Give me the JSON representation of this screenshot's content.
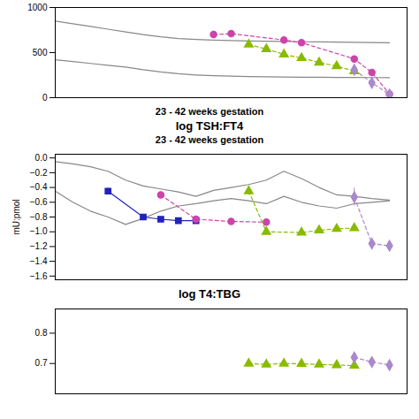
{
  "chart_data": [
    {
      "type": "line",
      "xlabel": "23 - 42 weeks gestation",
      "xlim": [
        23,
        43
      ],
      "ylim": [
        0,
        1000
      ],
      "yticks": [
        0,
        500,
        1000
      ],
      "tick_labels": "y",
      "grid": false,
      "series": [
        {
          "color": "#888888",
          "marker": "none",
          "line_style": "solid",
          "x": [
            23,
            24,
            25,
            26,
            27,
            28,
            29,
            30,
            31,
            32,
            33,
            34,
            35,
            36,
            37,
            38,
            39,
            40,
            41,
            42
          ],
          "values": [
            420,
            400,
            380,
            360,
            340,
            310,
            285,
            265,
            252,
            243,
            238,
            234,
            231,
            229,
            227,
            226,
            225,
            224,
            223,
            222
          ]
        },
        {
          "color": "#888888",
          "marker": "none",
          "line_style": "solid",
          "x": [
            23,
            24,
            25,
            26,
            27,
            28,
            29,
            30,
            31,
            32,
            33,
            34,
            35,
            36,
            37,
            38,
            39,
            40,
            41,
            42
          ],
          "values": [
            850,
            820,
            790,
            760,
            730,
            700,
            675,
            655,
            645,
            638,
            633,
            629,
            626,
            623,
            620,
            618,
            616,
            614,
            612,
            610
          ]
        },
        {
          "color": "#cc44aa",
          "marker": "circle",
          "line_style": "dashed",
          "x": [
            32,
            33,
            36,
            37,
            40,
            41,
            42
          ],
          "values": [
            700,
            710,
            640,
            610,
            430,
            280,
            40
          ],
          "error": [
            25,
            25,
            25,
            25,
            25,
            25,
            15
          ]
        },
        {
          "color": "#88bb00",
          "marker": "triangle",
          "line_style": "dashed",
          "x": [
            34,
            35,
            36,
            37,
            38,
            39,
            40
          ],
          "values": [
            590,
            540,
            480,
            440,
            390,
            350,
            295
          ],
          "error": [
            20,
            20,
            20,
            20,
            20,
            20,
            20
          ]
        },
        {
          "color": "#aa88cc",
          "marker": "diamond",
          "line_style": "dashed",
          "x": [
            40,
            41,
            42
          ],
          "values": [
            310,
            165,
            35
          ],
          "error": [
            25,
            20,
            12
          ]
        }
      ]
    },
    {
      "type": "line",
      "title": "log TSH:FT4",
      "subtitle": "23 - 42 weeks gestation",
      "ylabel": "mU:pmol",
      "xlim": [
        23,
        43
      ],
      "ylim": [
        -1.65,
        0.05
      ],
      "yticks": [
        {
          "value": 0,
          "label": "0.0"
        },
        -0.2,
        -0.4,
        -0.6,
        -0.8,
        {
          "value": -1.0,
          "label": "−1.0"
        },
        -1.2,
        -1.4,
        -1.6
      ],
      "tick_labels": "y",
      "grid": false,
      "series": [
        {
          "color": "#888888",
          "marker": "none",
          "line_style": "solid",
          "x": [
            23,
            24,
            25,
            26,
            27,
            28,
            29,
            30,
            31,
            32,
            33,
            34,
            35,
            36,
            37,
            38,
            39,
            40,
            41,
            42
          ],
          "values": [
            -0.05,
            -0.08,
            -0.12,
            -0.18,
            -0.3,
            -0.38,
            -0.42,
            -0.46,
            -0.52,
            -0.44,
            -0.4,
            -0.36,
            -0.3,
            -0.18,
            -0.28,
            -0.4,
            -0.5,
            -0.52,
            -0.55,
            -0.57
          ]
        },
        {
          "color": "#888888",
          "marker": "none",
          "line_style": "solid",
          "x": [
            23,
            24,
            25,
            26,
            27,
            28,
            29,
            30,
            31,
            32,
            33,
            34,
            35,
            36,
            37,
            38,
            39,
            40,
            41,
            42
          ],
          "values": [
            -0.45,
            -0.6,
            -0.72,
            -0.8,
            -0.9,
            -0.82,
            -0.72,
            -0.65,
            -0.62,
            -0.58,
            -0.55,
            -0.58,
            -0.62,
            -0.52,
            -0.6,
            -0.65,
            -0.68,
            -0.62,
            -0.6,
            -0.58
          ]
        },
        {
          "color": "#2222bb",
          "marker": "square",
          "line_style": "solid",
          "x": [
            26,
            28,
            29,
            30,
            31
          ],
          "values": [
            -0.45,
            -0.8,
            -0.83,
            -0.85,
            -0.85
          ],
          "error": [
            0.04,
            0.03,
            0.03,
            0.03,
            0.03
          ]
        },
        {
          "color": "#cc44aa",
          "marker": "circle",
          "line_style": "dashed",
          "x": [
            29,
            31,
            33,
            35
          ],
          "values": [
            -0.5,
            -0.83,
            -0.86,
            -0.87
          ],
          "error": [
            0.04,
            0.04,
            0.04,
            0.04
          ]
        },
        {
          "color": "#88bb00",
          "marker": "triangle",
          "line_style": "dashed",
          "x": [
            34,
            35,
            37,
            38,
            39,
            40
          ],
          "values": [
            -0.45,
            -1.0,
            -1.01,
            -0.98,
            -0.96,
            -0.95
          ],
          "error": [
            0.05,
            0.04,
            0.04,
            0.04,
            0.04,
            0.04
          ]
        },
        {
          "color": "#aa88cc",
          "marker": "diamond",
          "line_style": "dashed",
          "x": [
            40,
            41,
            42
          ],
          "values": [
            -0.53,
            -1.16,
            -1.19
          ],
          "error": [
            0.12,
            0.06,
            0.05
          ]
        }
      ]
    },
    {
      "type": "line",
      "title": "log T4:TBG",
      "xlim": [
        23,
        43
      ],
      "ylim": [
        0.6,
        0.88
      ],
      "yticks": [
        0.7,
        0.8
      ],
      "tick_labels": "y",
      "grid": false,
      "series": [
        {
          "color": "#88bb00",
          "marker": "triangle",
          "line_style": "dashed",
          "x": [
            34,
            35,
            36,
            37,
            38,
            39,
            40
          ],
          "values": [
            0.7,
            0.697,
            0.7,
            0.699,
            0.697,
            0.695,
            0.693
          ],
          "error": [
            0.007,
            0.007,
            0.007,
            0.007,
            0.007,
            0.007,
            0.007
          ]
        },
        {
          "color": "#aa88cc",
          "marker": "diamond",
          "line_style": "dashed",
          "x": [
            40,
            41,
            42
          ],
          "values": [
            0.72,
            0.705,
            0.695
          ],
          "error": [
            0.01,
            0.01,
            0.01
          ]
        }
      ]
    }
  ]
}
